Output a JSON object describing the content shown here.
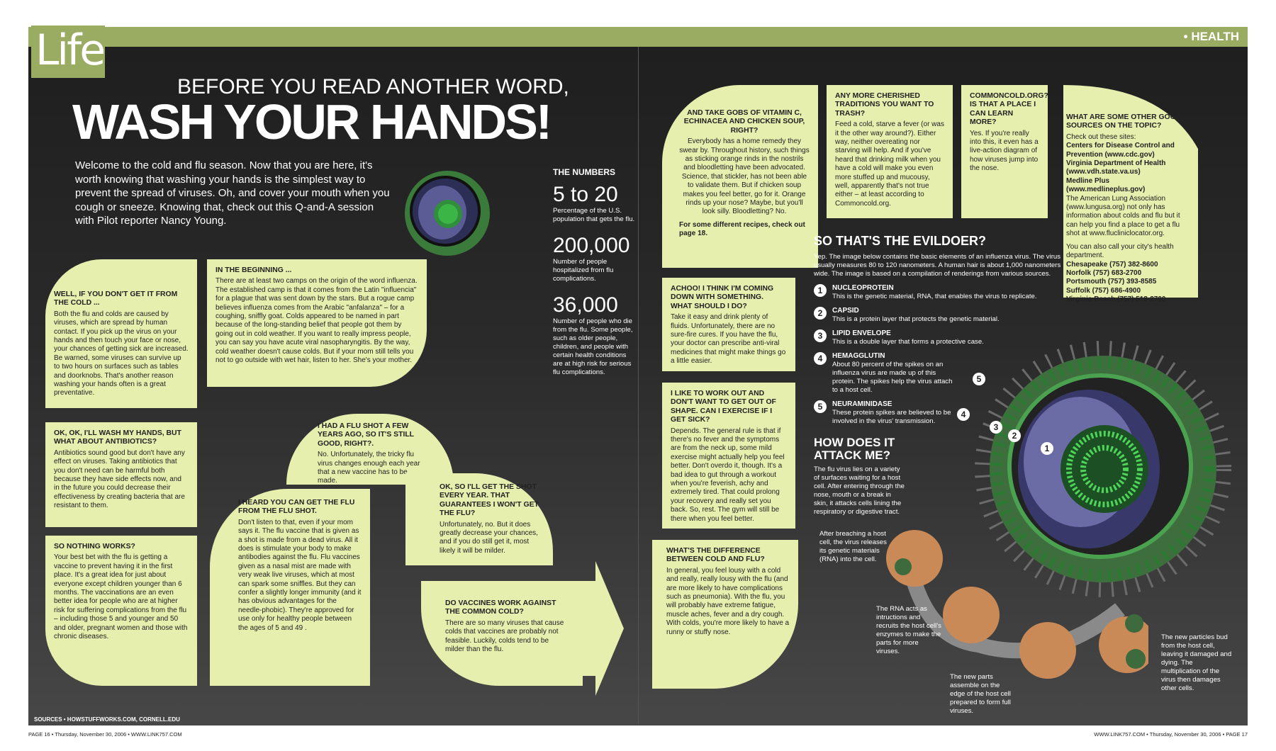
{
  "masthead": {
    "logo": "Life",
    "section": "• HEALTH"
  },
  "headline": {
    "pre": "BEFORE YOU READ ANOTHER WORD,",
    "title": "WASH YOUR HANDS!"
  },
  "intro": "Welcome to the cold and flu season. Now that you are here, it's worth knowing that washing your hands is the simplest way to prevent the spread of viruses. Oh, and cover your mouth when you cough or sneeze. Knowing that, check out this Q-and-A session with Pilot reporter Nancy Young.",
  "qa": {
    "beginning": {
      "q": "IN THE BEGINNING ...",
      "a": "There are at least two camps on the origin of the word influenza. The established camp is that it comes from the Latin \"influencia\" for a plague that was sent down by the stars. But a rogue camp believes influenza comes from the Arabic \"anfalanza\" – for a coughing, sniffly goat. Colds appeared to be named in part because of the long-standing belief that people got them by going out in cold weather. If you want to really impress people, you can say you have acute viral nasopharyngitis. By the way, cold weather doesn't cause colds. But if your mom still tells you not to go outside with wet hair, listen to her. She's your mother."
    },
    "cold": {
      "q": "WELL, IF YOU DON'T GET IT FROM THE COLD ...",
      "a": "Both the flu and colds are caused by viruses, which are spread by human contact. If you pick up the virus on your hands and then touch your face or nose, your chances of getting sick are increased. Be warned, some viruses can survive up to two hours on surfaces such as tables and doorknobs. That's another reason washing your hands often is a great preventative."
    },
    "antibiotics": {
      "q": "OK, OK, I'LL WASH MY HANDS, BUT WHAT ABOUT ANTIBIOTICS?",
      "a": "Antibiotics sound good but don't have any effect on viruses. Taking antibiotics that you don't need can be harmful both because they have side effects now, and in the future you could decrease their effectiveness by creating bacteria that are resistant to them."
    },
    "nothing": {
      "q": "SO NOTHING WORKS?",
      "a": "Your best bet with the flu is getting a vaccine to prevent having it in the first place. It's a great idea for just about everyone except children younger than 6 months. The vaccinations are an even better idea for people who are at higher risk for suffering complications from the flu – including those 5 and younger and 50 and older, pregnant women and those with chronic diseases."
    },
    "flushot": {
      "q": "I HEARD YOU CAN GET THE FLU FROM THE FLU SHOT.",
      "a": "Don't listen to that, even if your mom says it. The flu vaccine that is given as a shot is made from a dead virus. All it does is stimulate your body to make antibodies against the flu. Flu vaccines given as a nasal mist are made with very weak live viruses, which at most can spark some sniffles. But they can confer a slightly longer immunity (and it has obvious advantages for the needle-phobic). They're approved for use only for healthy people between the ages of 5 and 49 ."
    },
    "fewyears": {
      "q": "I HAD A FLU SHOT A FEW YEARS AGO, SO IT'S STILL GOOD, RIGHT?.",
      "a": "No. Unfortunately, the tricky flu virus changes enough each year that a new vaccine has to be made."
    },
    "everyyear": {
      "q": "OK, SO I'LL GET THE SHOT EVERY YEAR. THAT GUARANTEES I WON'T GET THE FLU?",
      "a": "Unfortunately, no. But it does greatly decrease your chances, and if you do still get it, most likely it will be milder."
    },
    "vaccines": {
      "q": "DO VACCINES WORK AGAINST THE COMMON COLD?",
      "a": "There are so many viruses that cause colds that vaccines are probably not feasible. Luckily, colds tend to be milder than the flu."
    },
    "vitamin": {
      "q": "AND TAKE GOBS OF VITAMIN C, ECHINACEA AND CHICKEN SOUP, RIGHT?",
      "a": "Everybody has a home remedy they swear by. Throughout history, such things as sticking orange rinds in the nostrils and bloodletting have been advocated. Science, that stickler, has not been able to validate them. But if chicken soup makes you feel better, go for it. Orange rinds up your nose? Maybe, but you'll look silly. Bloodletting? No.",
      "note": "For some different recipes, check out page 18."
    },
    "traditions": {
      "q": "ANY MORE CHERISHED TRADITIONS YOU WANT TO TRASH?",
      "a": "Feed a cold, starve a fever (or was it the other way around?). Either way, neither overeating nor starving will help. And if you've heard that drinking milk when you have a cold will make you even more stuffed up and mucousy, well, apparently that's not true either – at least according to Commoncold.org."
    },
    "commoncold": {
      "q": "COMMONCOLD.ORG? IS THAT A PLACE I CAN LEARN MORE?",
      "a": "Yes. If you're really into this, it even has a live-action diagram of how viruses jump into the nose."
    },
    "achoo": {
      "q": "ACHOO! I THINK I'M COMING DOWN WITH SOMETHING. WHAT SHOULD I DO?",
      "a": "Take it easy and drink plenty of fluids. Unfortunately, there are no sure-fire cures. If you have the flu, your doctor can prescribe anti-viral medicines that might make things go a little easier."
    },
    "workout": {
      "q": "I LIKE TO WORK OUT AND DON'T WANT TO GET OUT OF SHAPE. CAN I EXERCISE IF I GET SICK?",
      "a": "Depends. The general rule is that if there's no fever and the symptoms are from the neck up, some mild exercise might actually help you feel better. Don't overdo it, though. It's a bad idea to gut through a workout when you're feverish, achy and extremely tired. That could prolong your recovery and really set you back. So, rest. The gym will still be there when you feel better."
    },
    "difference": {
      "q": "WHAT'S THE DIFFERENCE BETWEEN COLD AND FLU?",
      "a": "In general, you feel lousy with a cold and really, really lousy with the flu (and are more likely to have complications such as pneumonia). With the flu, you will probably have extreme fatigue, muscle aches, fever and a dry cough. With colds, you're more likely to have a runny or stuffy nose."
    },
    "sources": {
      "q": "WHAT ARE SOME OTHER GOOD SOURCES ON THE TOPIC?",
      "intro": "Check out these sites:",
      "list": [
        "Centers for Disease Control and Prevention (www.cdc.gov)",
        "Virginia Department of Health (www.vdh.state.va.us)",
        "Medline Plus (www.medlineplus.gov)",
        "The American Lung Association (www.lungusa.org) not only has information about colds and flu but it can help you find a place to get a flu shot at www.flucliniclocator.org."
      ],
      "call": "You can also call your city's health department.",
      "phones": [
        "Chesapeake (757) 382-8600",
        "Norfolk (757) 683-2700",
        "Portsmouth (757) 393-8585",
        "Suffolk (757) 686-4900",
        "Virginia Beach (757) 518-2700"
      ]
    }
  },
  "numbers": {
    "heading": "THE NUMBERS",
    "items": [
      {
        "value": "5 to 20",
        "text": "Percentage of the U.S. population that gets the flu."
      },
      {
        "value": "200,000",
        "text": "Number of people hospitalized from flu complications."
      },
      {
        "value": "36,000",
        "text": "Number of people who die from the flu. Some people, such as older people, children, and people with certain health conditions are at high risk for serious flu complications."
      }
    ]
  },
  "evildoer": {
    "title": "SO THAT'S THE EVILDOER?",
    "intro": "Yep. The image below contains the basic elements of an influenza virus. The virus usually measures 80 to 120 nanometers. A human hair is about 1,000 nanometers wide. The image is based on a compilation of renderings from various sources.",
    "parts": [
      {
        "n": "1",
        "name": "NUCLEOPROTEIN",
        "text": "This is the genetic material, RNA, that enables the virus to replicate."
      },
      {
        "n": "2",
        "name": "CAPSID",
        "text": "This is a protein layer that protects the genetic material."
      },
      {
        "n": "3",
        "name": "LIPID ENVELOPE",
        "text": "This is a double layer that forms a protective case."
      },
      {
        "n": "4",
        "name": "HEMAGGLUTIN",
        "text": "About 80 percent of the spikes on an influenza virus are made up of this protein. The spikes help the virus attach to a host cell."
      },
      {
        "n": "5",
        "name": "NEURAMINIDASE",
        "text": "These protein spikes are believed to be involved in the virus' transmission."
      }
    ]
  },
  "attack": {
    "title": "HOW DOES IT ATTACK ME?",
    "text": "The flu virus lies on a variety of surfaces waiting for a host cell. After entering through the nose, mouth or a break in skin, it attacks cells lining the respiratory or digestive tract.",
    "steps": [
      "After breaching a host cell, the virus releases its genetic materials (RNA) into the cell.",
      "The RNA acts as intructions and recruits the host cell's enzymes to make the parts for more viruses.",
      "The new parts assemble on the edge of the host cell prepared to form full viruses.",
      "The new particles bud from the host cell, leaving it damaged and dying. The multiplication of the virus then damages other cells."
    ]
  },
  "footer": {
    "sources": "SOURCES • HOWSTUFFWORKS.COM, CORNELL.EDU",
    "left": "PAGE 16 • Thursday, November 30, 2006 • WWW.LINK757.COM",
    "right": "WWW.LINK757.COM • Thursday, November 30, 2006 • PAGE 17"
  },
  "colors": {
    "panel": "#e6efae",
    "band": "#9aab62",
    "background": "#262626"
  },
  "icons": [
    "influenza-virus-icon",
    "host-cell-icon"
  ]
}
